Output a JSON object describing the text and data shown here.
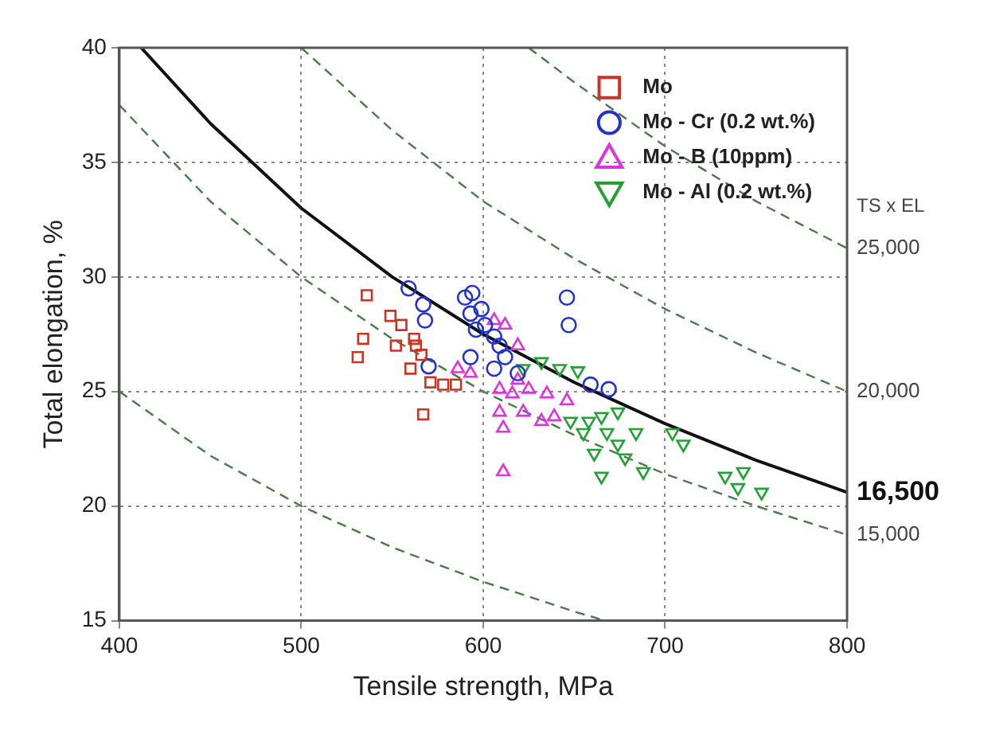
{
  "chart_data": {
    "type": "scatter",
    "xlabel": "Tensile strength, MPa",
    "ylabel": "Total elongation, %",
    "xlim": [
      400,
      800
    ],
    "xticks": [
      400,
      500,
      600,
      700,
      800
    ],
    "ylim": [
      15,
      40
    ],
    "yticks": [
      15,
      20,
      25,
      30,
      35,
      40
    ],
    "grid": true,
    "legend": "top right",
    "marker": "none",
    "annotations": [
      "TS x EL"
    ],
    "series": [
      {
        "name": "Mo",
        "type": "scatter",
        "marker": "square",
        "color": "#cc3322",
        "x": [
          536,
          549,
          555,
          534,
          531,
          562,
          563,
          566,
          560,
          571,
          567,
          578,
          585,
          552
        ],
        "values": [
          29.2,
          28.3,
          27.9,
          27.3,
          26.5,
          27.3,
          27,
          26.6,
          26,
          25.4,
          24,
          25.3,
          25.3,
          27
        ]
      },
      {
        "name": "Mo - Cr (0.2 wt.%)",
        "type": "scatter",
        "marker": "circle",
        "color": "#2233cc",
        "x": [
          559,
          567,
          568,
          590,
          594,
          599,
          593,
          601,
          606,
          609,
          612,
          606,
          619,
          593,
          570,
          646,
          647,
          659,
          669,
          596
        ],
        "values": [
          29.5,
          28.8,
          28.1,
          29.1,
          29.3,
          28.6,
          28.4,
          27.9,
          27.4,
          27,
          26.5,
          26,
          25.8,
          26.5,
          26.1,
          29.1,
          27.9,
          25.3,
          25.1,
          27.7
        ]
      },
      {
        "name": "Mo - B (10ppm)",
        "type": "scatter",
        "marker": "triangle",
        "color": "#dd33dd",
        "x": [
          606,
          612,
          619,
          593,
          609,
          616,
          625,
          635,
          646,
          609,
          622,
          632,
          611,
          639,
          619,
          611,
          586
        ],
        "values": [
          28.1,
          27.9,
          27,
          25.8,
          25.1,
          24.9,
          25.1,
          24.9,
          24.6,
          24.1,
          24.1,
          23.7,
          23.4,
          23.9,
          25.5,
          21.5,
          26
        ]
      },
      {
        "name": "Mo - Al (0.2 wt.%)",
        "type": "scatter",
        "marker": "triangle_down",
        "color": "#22a033",
        "x": [
          622,
          632,
          642,
          652,
          648,
          658,
          665,
          655,
          668,
          661,
          674,
          678,
          688,
          665,
          704,
          710,
          733,
          743,
          753,
          740,
          674,
          684
        ],
        "values": [
          26,
          26.3,
          26,
          25.9,
          23.7,
          23.7,
          23.9,
          23.2,
          23.2,
          22.3,
          22.7,
          22.1,
          21.5,
          21.3,
          23.2,
          22.7,
          21.3,
          21.5,
          20.6,
          20.8,
          24.1,
          23.2
        ]
      },
      {
        "type": "line",
        "line_style": "dashed",
        "color": "#4a7a4a",
        "x": [
          400,
          450,
          500,
          550,
          600,
          650,
          667
        ],
        "values": [
          25,
          22.2,
          20,
          18.2,
          16.7,
          15.4,
          15
        ]
      },
      {
        "name": "15,000",
        "type": "line",
        "line_style": "dashed",
        "color": "#4a7a4a",
        "x": [
          400,
          450,
          500,
          550,
          600,
          650,
          700,
          750,
          800
        ],
        "values": [
          37.5,
          33.3,
          30,
          27.3,
          25,
          23.1,
          21.4,
          20,
          18.75
        ]
      },
      {
        "name": "16,500",
        "type": "line",
        "line_style": "solid",
        "color": "#111111",
        "x": [
          412,
          450,
          500,
          550,
          600,
          650,
          700,
          750,
          800
        ],
        "values": [
          40,
          36.7,
          33,
          30,
          27.5,
          25.4,
          23.6,
          22,
          20.6
        ]
      },
      {
        "name": "20,000",
        "type": "line",
        "line_style": "dashed",
        "color": "#4a7a4a",
        "x": [
          500,
          550,
          600,
          650,
          700,
          750,
          800
        ],
        "values": [
          40,
          36.4,
          33.3,
          30.8,
          28.6,
          26.7,
          25
        ]
      },
      {
        "name": "25,000",
        "type": "line",
        "line_style": "dashed",
        "color": "#4a7a4a",
        "x": [
          625,
          650,
          700,
          750,
          800
        ],
        "values": [
          40,
          38.5,
          35.7,
          33.3,
          31.25
        ]
      }
    ]
  }
}
